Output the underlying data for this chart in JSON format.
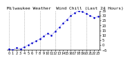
{
  "title": "Milwaukee Weather  Wind Chill (Last 24 Hours)",
  "hours": [
    0,
    1,
    2,
    3,
    4,
    5,
    6,
    7,
    8,
    9,
    10,
    11,
    12,
    13,
    14,
    15,
    16,
    17,
    18,
    19,
    20,
    21,
    22,
    23
  ],
  "wind_chill": [
    -4,
    -5,
    -3,
    -4,
    -2,
    0,
    2,
    4,
    6,
    9,
    12,
    10,
    14,
    18,
    22,
    26,
    30,
    33,
    35,
    34,
    32,
    30,
    28,
    29
  ],
  "y_min": -5,
  "y_max": 35,
  "y_ticks": [
    35,
    30,
    25,
    20,
    15,
    10,
    5,
    0,
    -5
  ],
  "line_color": "#0000cc",
  "bg_color": "#ffffff",
  "grid_color": "#888888",
  "title_fontsize": 4.5,
  "tick_fontsize": 3.5,
  "x_tick_labels": [
    "0",
    "1",
    "2",
    "3",
    "4",
    "5",
    "6",
    "7",
    "8",
    "9",
    "10",
    "11",
    "12",
    "13",
    "14",
    "15",
    "16",
    "17",
    "18",
    "19",
    "20",
    "21",
    "22",
    "23"
  ]
}
